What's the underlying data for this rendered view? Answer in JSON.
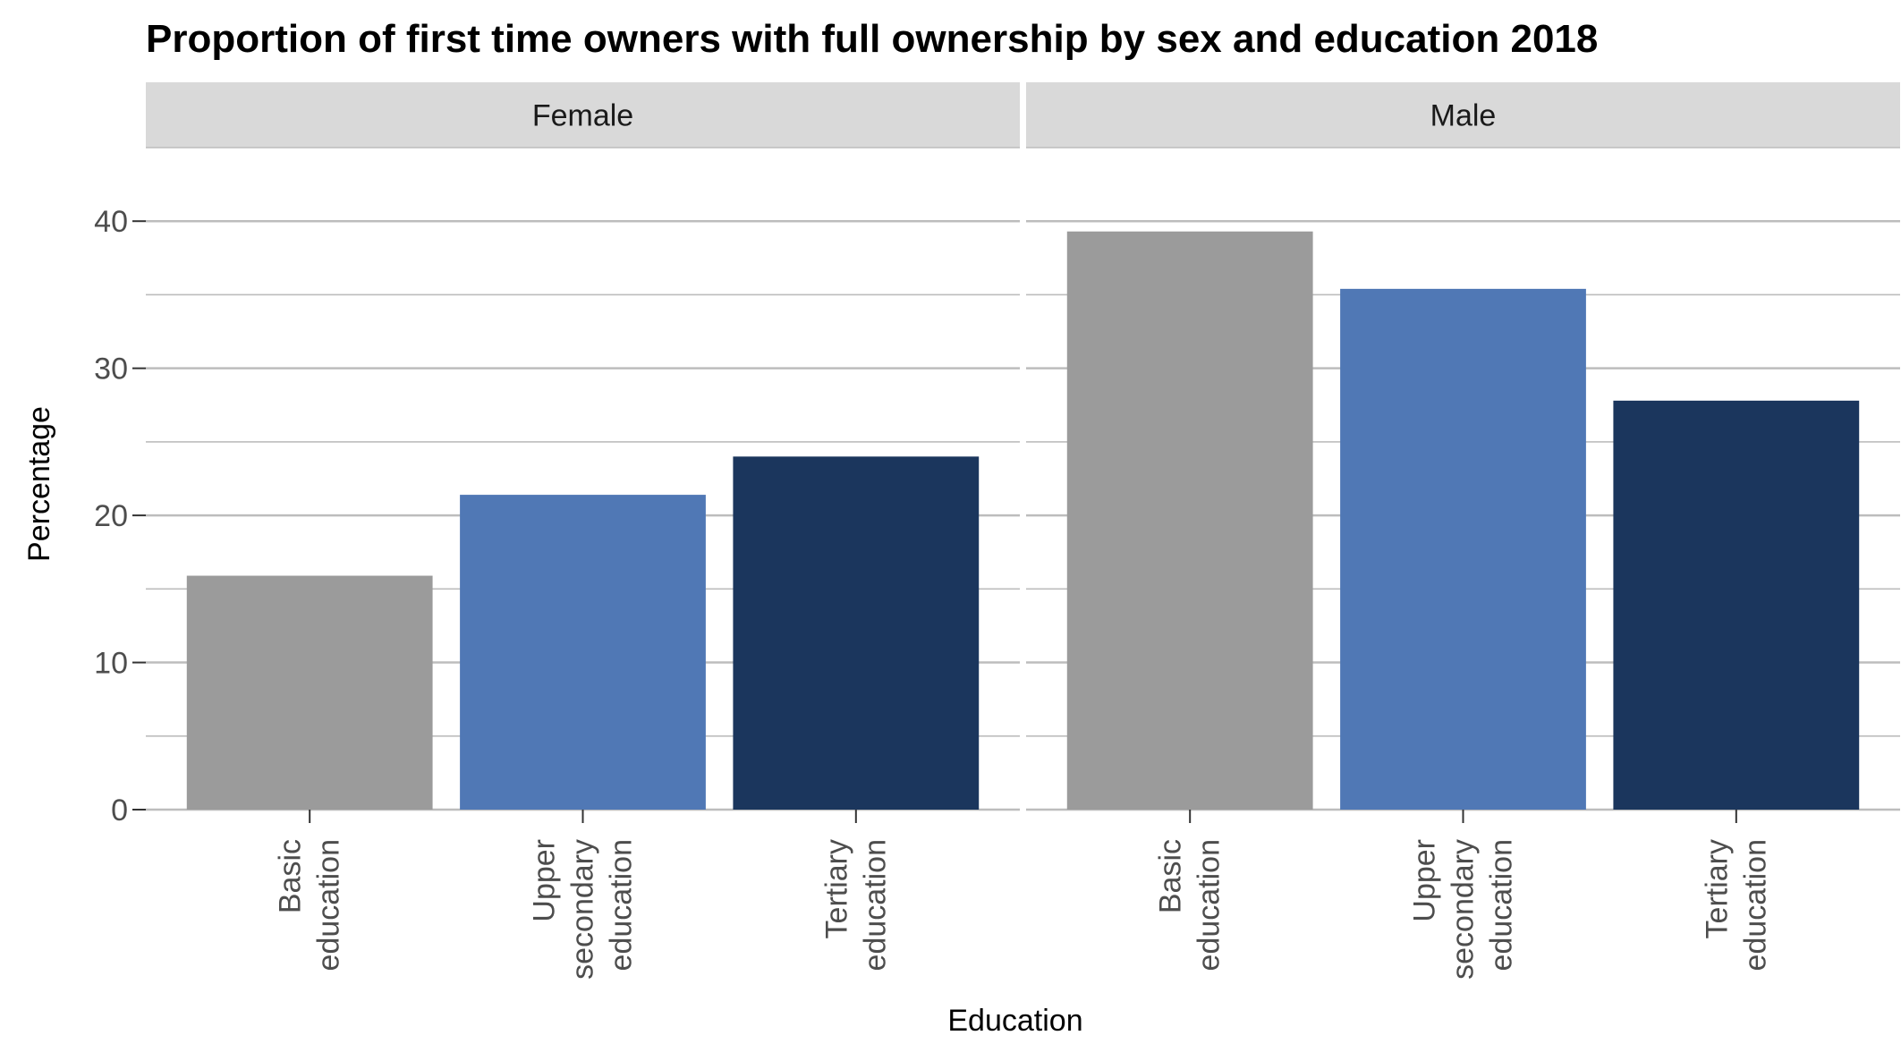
{
  "chart_data": {
    "type": "bar",
    "title": "Proportion of first time owners with full ownership by sex and education 2018",
    "xlabel": "Education",
    "ylabel": "Percentage",
    "ylim": [
      0,
      45
    ],
    "y_ticks": [
      "0",
      "10",
      "20",
      "30",
      "40"
    ],
    "categories": [
      [
        "Basic",
        "education"
      ],
      [
        "Upper",
        "secondary",
        "education"
      ],
      [
        "Tertiary",
        "education"
      ]
    ],
    "category_colors": [
      "#9b9b9b",
      "#5078b5",
      "#1b365d"
    ],
    "panels": [
      {
        "name": "Female",
        "values": [
          15.9,
          21.4,
          24.0
        ]
      },
      {
        "name": "Male",
        "values": [
          39.3,
          35.4,
          27.8
        ]
      }
    ],
    "grid": true,
    "legend": "none"
  }
}
